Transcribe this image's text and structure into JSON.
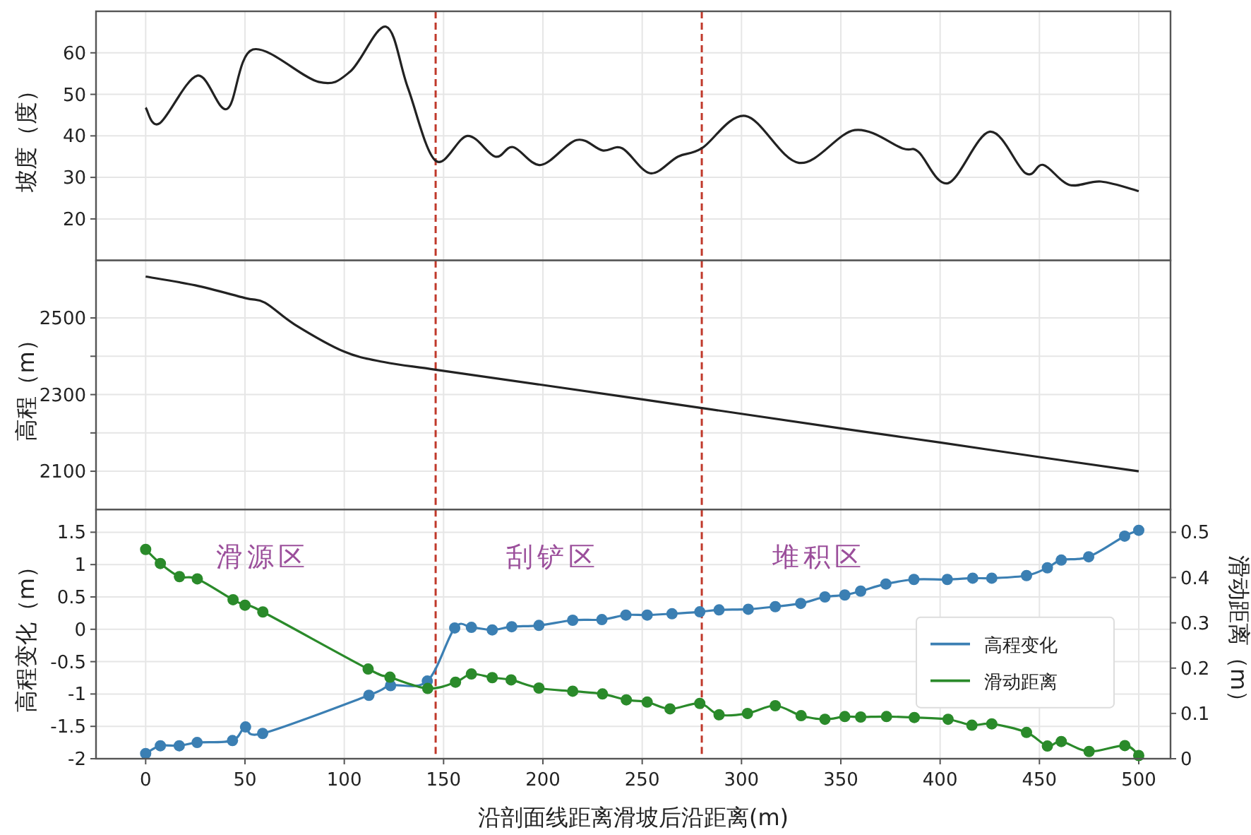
{
  "chart_data": [
    {
      "type": "line",
      "ylabel": "坡度（度）",
      "xlim": [
        -25,
        516
      ],
      "xticks": [
        0,
        50,
        100,
        150,
        200,
        250,
        300,
        350,
        400,
        450,
        500
      ],
      "ylim": [
        10,
        70
      ],
      "yticks": [
        20,
        30,
        40,
        50,
        60
      ],
      "grid": true,
      "tick_labels": "y",
      "ref_lines": [
        {
          "axis": "x",
          "value": 146,
          "color": "#c0392b",
          "line_style": "dashed"
        },
        {
          "axis": "x",
          "value": 280,
          "color": "#c0392b",
          "line_style": "dashed"
        }
      ],
      "series": [
        {
          "color": "#222222",
          "x": [
            0,
            7,
            26,
            41,
            54,
            87,
            103,
            121,
            132,
            146,
            162,
            176,
            185,
            199,
            217,
            230,
            240,
            254,
            268,
            280,
            302,
            329,
            357,
            381,
            389,
            404,
            425,
            443,
            452,
            465,
            481,
            500
          ],
          "values": [
            46.8,
            43,
            54.5,
            46.5,
            60.8,
            53,
            55.5,
            66.3,
            51.6,
            34,
            40,
            35,
            37.3,
            33,
            39,
            36.5,
            37,
            31,
            35,
            37,
            44.8,
            33.5,
            41.4,
            37,
            36.2,
            28.6,
            41,
            31,
            33,
            28.2,
            29,
            26.7
          ]
        }
      ]
    },
    {
      "type": "line",
      "ylabel": "高程（m）",
      "xlim": [
        -25,
        516
      ],
      "xticks": [
        0,
        50,
        100,
        150,
        200,
        250,
        300,
        350,
        400,
        450,
        500
      ],
      "ylim": [
        2000,
        2650
      ],
      "yticks": [
        2100,
        {
          "value": 2200,
          "label": null
        },
        2300,
        {
          "value": 2400,
          "label": null
        },
        2500
      ],
      "grid": true,
      "tick_labels": "y",
      "ref_lines": [
        {
          "axis": "x",
          "value": 146,
          "color": "#c0392b",
          "line_style": "dashed"
        },
        {
          "axis": "x",
          "value": 280,
          "color": "#c0392b",
          "line_style": "dashed"
        }
      ],
      "series": [
        {
          "color": "#222222",
          "x": [
            0,
            25,
            50,
            60,
            75,
            100,
            120,
            146,
            200,
            280,
            350,
            400,
            450,
            500
          ],
          "values": [
            2608,
            2585,
            2552,
            2540,
            2483,
            2412,
            2385,
            2365,
            2325,
            2265,
            2212,
            2175,
            2137,
            2100
          ]
        }
      ]
    },
    {
      "type": "line",
      "xlabel": "沿剖面线距离滑坡后沿距离(m)",
      "ylabel": "高程变化（m）",
      "y2label": "滑动距离（m）",
      "xlim": [
        -25,
        516
      ],
      "xticks": [
        0,
        50,
        100,
        150,
        200,
        250,
        300,
        350,
        400,
        450,
        500
      ],
      "ylim": [
        -2,
        1.85
      ],
      "yticks": [
        -2,
        -1.5,
        -1,
        -0.5,
        0,
        0.5,
        1,
        1.5
      ],
      "y2lim": [
        0,
        0.55
      ],
      "y2ticks": [
        0,
        0.1,
        0.2,
        0.3,
        0.4,
        0.5
      ],
      "grid": true,
      "legend": "right",
      "marker": "circle",
      "ref_lines": [
        {
          "axis": "x",
          "value": 146,
          "color": "#c0392b",
          "line_style": "dashed"
        },
        {
          "axis": "x",
          "value": 280,
          "color": "#c0392b",
          "line_style": "dashed"
        }
      ],
      "annotations": [
        "滑源区",
        "刮铲区",
        "堆积区"
      ],
      "series": [
        {
          "name": "高程变化",
          "color": "#3b7fb3",
          "x": [
            0,
            7.4,
            16.9,
            25.9,
            43.7,
            50.3,
            58.9,
            112.4,
            123.3,
            141.8,
            155.6,
            164,
            174.5,
            184.3,
            198,
            215,
            229.7,
            241.8,
            252.5,
            265,
            279,
            288.7,
            303.4,
            317,
            329.8,
            342,
            352,
            360,
            372.7,
            386.8,
            403.6,
            416.4,
            426,
            443.5,
            454,
            461,
            474.8,
            492.9,
            500
          ],
          "values": [
            -1.92,
            -1.8,
            -1.8,
            -1.75,
            -1.72,
            -1.51,
            -1.61,
            -1.02,
            -0.87,
            -0.8,
            0.02,
            0.03,
            -0.01,
            0.04,
            0.06,
            0.14,
            0.15,
            0.22,
            0.22,
            0.24,
            0.27,
            0.3,
            0.31,
            0.35,
            0.4,
            0.5,
            0.53,
            0.59,
            0.7,
            0.77,
            0.77,
            0.79,
            0.79,
            0.83,
            0.95,
            1.07,
            1.12,
            1.44,
            1.53
          ]
        },
        {
          "name": "滑动距离",
          "color": "#2a8a2a",
          "axis": "y2",
          "x": [
            0,
            7.4,
            17,
            26,
            44,
            50,
            59,
            112,
            123,
            142,
            156,
            164,
            174.5,
            184,
            198,
            215,
            230,
            242,
            252.5,
            264,
            279,
            288.7,
            303,
            317,
            330,
            342,
            352,
            360,
            373,
            387,
            404,
            416,
            426,
            443.5,
            454,
            461,
            475,
            493,
            500
          ],
          "values": [
            0.462,
            0.431,
            0.402,
            0.397,
            0.351,
            0.339,
            0.324,
            0.198,
            0.18,
            0.155,
            0.169,
            0.187,
            0.179,
            0.174,
            0.156,
            0.149,
            0.143,
            0.13,
            0.125,
            0.11,
            0.122,
            0.097,
            0.1,
            0.117,
            0.095,
            0.087,
            0.093,
            0.092,
            0.093,
            0.091,
            0.087,
            0.074,
            0.077,
            0.058,
            0.028,
            0.038,
            0.016,
            0.029,
            0.007
          ]
        }
      ]
    }
  ]
}
